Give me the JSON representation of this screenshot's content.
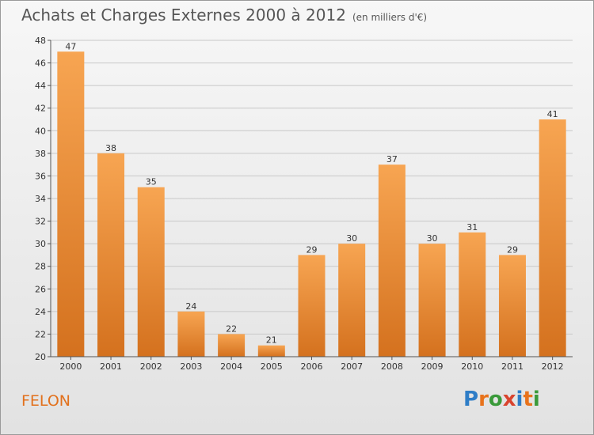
{
  "header": {
    "title": "Achats et Charges Externes 2000 à 2012",
    "unit": "(en milliers d'€)"
  },
  "footer": {
    "commune": "FELON",
    "logo_letters": [
      "P",
      "r",
      "o",
      "x",
      "i",
      "t",
      "i"
    ],
    "logo_colors": [
      "#2e7dc7",
      "#e8731c",
      "#3a9a3a",
      "#d9442e",
      "#2e7dc7",
      "#e8731c",
      "#3a9a3a"
    ]
  },
  "colors": {
    "bar_light": "#f7a552",
    "bar_dark": "#d4711e",
    "grid": "#c8c8c8",
    "axis": "#555555"
  },
  "chart_data": {
    "type": "bar",
    "title": "Achats et Charges Externes 2000 à 2012",
    "xlabel": "",
    "ylabel": "",
    "categories": [
      "2000",
      "2001",
      "2002",
      "2003",
      "2004",
      "2005",
      "2006",
      "2007",
      "2008",
      "2009",
      "2010",
      "2011",
      "2012"
    ],
    "values": [
      47,
      38,
      35,
      24,
      22,
      21,
      29,
      30,
      37,
      30,
      31,
      29,
      41
    ],
    "ylim": [
      20,
      48
    ],
    "yticks": [
      20,
      22,
      24,
      26,
      28,
      30,
      32,
      34,
      36,
      38,
      40,
      42,
      44,
      46,
      48
    ],
    "grid": true
  }
}
